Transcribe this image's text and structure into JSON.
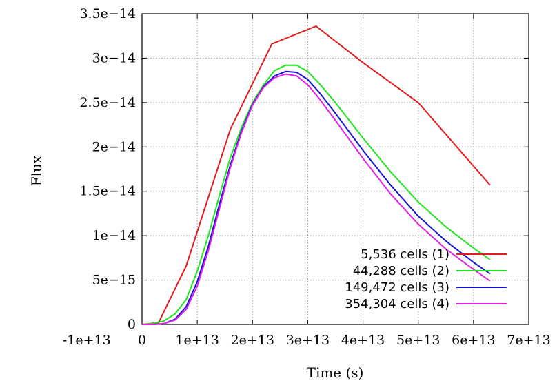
{
  "chart_data": {
    "type": "line",
    "title": "",
    "xlabel": "Time (s)",
    "ylabel": "Flux",
    "xlim": [
      0,
      70000000000000.0
    ],
    "ylim": [
      0,
      3.5e-14
    ],
    "grid": true,
    "legend_position": "bottom-right",
    "x_ticks": [
      {
        "value": -10000000000000.0,
        "label": "-1e+13"
      },
      {
        "value": 0,
        "label": "0"
      },
      {
        "value": 10000000000000.0,
        "label": "1e+13"
      },
      {
        "value": 20000000000000.0,
        "label": "2e+13"
      },
      {
        "value": 30000000000000.0,
        "label": "3e+13"
      },
      {
        "value": 40000000000000.0,
        "label": "4e+13"
      },
      {
        "value": 50000000000000.0,
        "label": "5e+13"
      },
      {
        "value": 60000000000000.0,
        "label": "6e+13"
      },
      {
        "value": 70000000000000.0,
        "label": "7e+13"
      }
    ],
    "y_ticks": [
      {
        "value": 0,
        "label": "0"
      },
      {
        "value": 5e-15,
        "label": "5e−15"
      },
      {
        "value": 1e-14,
        "label": "1e−14"
      },
      {
        "value": 1.5e-14,
        "label": "1.5e−14"
      },
      {
        "value": 2e-14,
        "label": "2e−14"
      },
      {
        "value": 2.5e-14,
        "label": "2.5e−14"
      },
      {
        "value": 3e-14,
        "label": "3e−14"
      },
      {
        "value": 3.5e-14,
        "label": "3.5e−14"
      }
    ],
    "series": [
      {
        "name": "5,536 cells (1)",
        "color": "#e41a1c",
        "x": [
          0,
          3000000000000.0,
          8000000000000.0,
          16000000000000.0,
          23500000000000.0,
          31500000000000.0,
          40000000000000.0,
          50000000000000.0,
          63000000000000.0
        ],
        "y": [
          0,
          2e-16,
          6.6e-15,
          2.2e-14,
          3.16e-14,
          3.36e-14,
          2.95e-14,
          2.5e-14,
          1.57e-14
        ]
      },
      {
        "name": "44,288 cells (2)",
        "color": "#1ee61e",
        "x": [
          0,
          2000000000000.0,
          4000000000000.0,
          6000000000000.0,
          8000000000000.0,
          10000000000000.0,
          12000000000000.0,
          14000000000000.0,
          16000000000000.0,
          18000000000000.0,
          20000000000000.0,
          22000000000000.0,
          24000000000000.0,
          26000000000000.0,
          28000000000000.0,
          30000000000000.0,
          32000000000000.0,
          35000000000000.0,
          40000000000000.0,
          45000000000000.0,
          50000000000000.0,
          55000000000000.0,
          60000000000000.0,
          63000000000000.0
        ],
        "y": [
          0,
          1e-16,
          4e-16,
          1.2e-15,
          2.8e-15,
          6e-15,
          1e-14,
          1.45e-14,
          1.88e-14,
          2.22e-14,
          2.5e-14,
          2.7e-14,
          2.86e-14,
          2.92e-14,
          2.92e-14,
          2.85e-14,
          2.72e-14,
          2.5e-14,
          2.1e-14,
          1.72e-14,
          1.38e-14,
          1.1e-14,
          8.6e-15,
          7.3e-15
        ]
      },
      {
        "name": "149,472 cells (3)",
        "color": "#1414d2",
        "x": [
          0,
          2000000000000.0,
          4000000000000.0,
          6000000000000.0,
          8000000000000.0,
          10000000000000.0,
          12000000000000.0,
          14000000000000.0,
          16000000000000.0,
          18000000000000.0,
          20000000000000.0,
          22000000000000.0,
          24000000000000.0,
          26000000000000.0,
          28000000000000.0,
          30000000000000.0,
          32000000000000.0,
          35000000000000.0,
          40000000000000.0,
          45000000000000.0,
          50000000000000.0,
          55000000000000.0,
          60000000000000.0,
          63000000000000.0
        ],
        "y": [
          0,
          0,
          1e-16,
          6e-16,
          2e-15,
          4.8e-15,
          8.8e-15,
          1.35e-14,
          1.8e-14,
          2.18e-14,
          2.48e-14,
          2.68e-14,
          2.8e-14,
          2.85e-14,
          2.84e-14,
          2.76e-14,
          2.62e-14,
          2.38e-14,
          1.96e-14,
          1.57e-14,
          1.22e-14,
          9.4e-15,
          7e-15,
          5.7e-15
        ]
      },
      {
        "name": "354,304 cells (4)",
        "color": "#e61ee6",
        "x": [
          0,
          2000000000000.0,
          4000000000000.0,
          6000000000000.0,
          8000000000000.0,
          10000000000000.0,
          12000000000000.0,
          14000000000000.0,
          16000000000000.0,
          18000000000000.0,
          20000000000000.0,
          22000000000000.0,
          24000000000000.0,
          26000000000000.0,
          28000000000000.0,
          30000000000000.0,
          32000000000000.0,
          35000000000000.0,
          40000000000000.0,
          45000000000000.0,
          50000000000000.0,
          55000000000000.0,
          60000000000000.0,
          63000000000000.0
        ],
        "y": [
          0,
          0,
          1e-16,
          5e-16,
          1.7e-15,
          4.3e-15,
          8.3e-15,
          1.3e-14,
          1.77e-14,
          2.16e-14,
          2.47e-14,
          2.67e-14,
          2.78e-14,
          2.82e-14,
          2.8e-14,
          2.7e-14,
          2.55e-14,
          2.3e-14,
          1.87e-14,
          1.47e-14,
          1.13e-14,
          8.5e-15,
          6.2e-15,
          4.9e-15
        ]
      }
    ]
  }
}
